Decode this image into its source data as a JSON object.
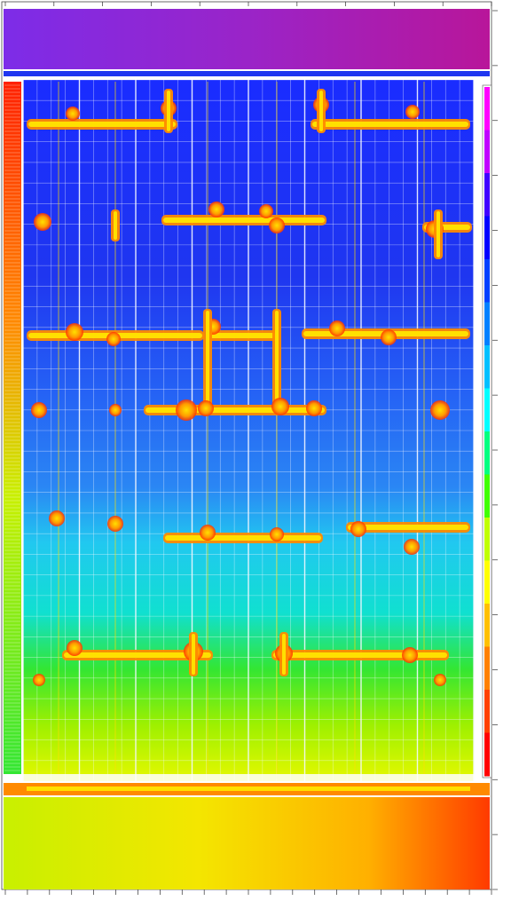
{
  "image": {
    "description_free": true,
    "palette": {
      "background": "#ffffff",
      "frame": "#222222",
      "grid_line": "#f4f8ff",
      "structure_hot": "#ff8a00",
      "structure_core": "#ffe000",
      "structure_edge": "#ff2a00"
    },
    "main_gradient": [
      {
        "stop": 0.0,
        "color": "#1a2cff"
      },
      {
        "stop": 0.28,
        "color": "#1f36f0"
      },
      {
        "stop": 0.45,
        "color": "#2563f5"
      },
      {
        "stop": 0.58,
        "color": "#2a86f4"
      },
      {
        "stop": 0.66,
        "color": "#21c8f0"
      },
      {
        "stop": 0.76,
        "color": "#10e0d0"
      },
      {
        "stop": 0.84,
        "color": "#33e633"
      },
      {
        "stop": 0.92,
        "color": "#9ef000"
      },
      {
        "stop": 1.0,
        "color": "#e6f800"
      }
    ],
    "top_band_gradient": [
      {
        "stop": 0.0,
        "color": "#7d2ce8"
      },
      {
        "stop": 0.5,
        "color": "#9a24c8"
      },
      {
        "stop": 1.0,
        "color": "#b8169a"
      }
    ],
    "bottom_band_gradient": [
      {
        "stop": 0.0,
        "color": "#c8f000"
      },
      {
        "stop": 0.4,
        "color": "#f4e600"
      },
      {
        "stop": 0.75,
        "color": "#ffb000"
      },
      {
        "stop": 1.0,
        "color": "#ff3a00"
      }
    ],
    "colorbar_segments": [
      "#ff00ff",
      "#c000ff",
      "#4000ff",
      "#0000ff",
      "#0040ff",
      "#0080ff",
      "#00c0ff",
      "#00ffff",
      "#00ff80",
      "#40ff00",
      "#c0ff00",
      "#ffff00",
      "#ffc000",
      "#ff8000",
      "#ff4000",
      "#ff0000"
    ],
    "grid": {
      "major_columns": 8,
      "minor_per_major": 4,
      "rows": 34
    }
  }
}
